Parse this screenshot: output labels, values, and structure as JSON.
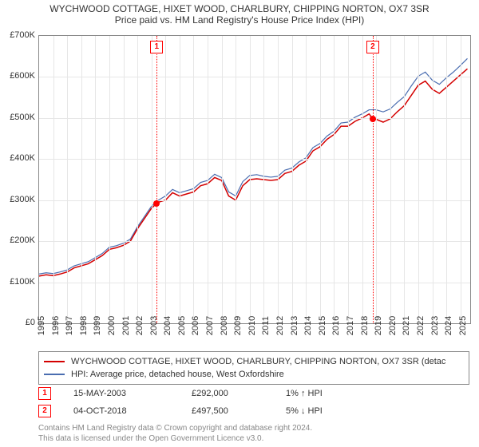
{
  "title": {
    "main": "WYCHWOOD COTTAGE, HIXET WOOD, CHARLBURY, CHIPPING NORTON, OX7 3SR",
    "sub": "Price paid vs. HM Land Registry's House Price Index (HPI)",
    "fontsize": 12,
    "color": "#333333"
  },
  "chart": {
    "type": "line",
    "background_color": "#ffffff",
    "border_color": "#888888",
    "grid_color": "#e6e6e6",
    "x": {
      "ticks": [
        "1995",
        "1996",
        "1997",
        "1998",
        "1999",
        "2000",
        "2001",
        "2002",
        "2003",
        "2004",
        "2005",
        "2006",
        "2007",
        "2008",
        "2009",
        "2010",
        "2011",
        "2012",
        "2013",
        "2014",
        "2015",
        "2016",
        "2017",
        "2018",
        "2019",
        "2020",
        "2021",
        "2022",
        "2023",
        "2024",
        "2025"
      ],
      "label_fontsize": 11,
      "label_rotation_deg": -90,
      "range": [
        1995,
        2025.7
      ]
    },
    "y": {
      "min": 0,
      "max": 700000,
      "tick_step": 100000,
      "tick_labels": [
        "£0",
        "£100K",
        "£200K",
        "£300K",
        "£400K",
        "£500K",
        "£600K",
        "£700K"
      ],
      "label_fontsize": 11
    },
    "series": [
      {
        "name": "WYCHWOOD COTTAGE, HIXET WOOD, CHARLBURY, CHIPPING NORTON, OX7 3SR (detac",
        "color": "#d40000",
        "line_width": 1.5,
        "x": [
          1995,
          1995.5,
          1996,
          1996.5,
          1997,
          1997.5,
          1998,
          1998.5,
          1999,
          1999.5,
          2000,
          2000.5,
          2001,
          2001.5,
          2002,
          2002.5,
          2003,
          2003.37,
          2003.5,
          2004,
          2004.5,
          2005,
          2005.5,
          2006,
          2006.5,
          2007,
          2007.5,
          2008,
          2008.5,
          2009,
          2009.5,
          2010,
          2010.5,
          2011,
          2011.5,
          2012,
          2012.5,
          2013,
          2013.5,
          2014,
          2014.5,
          2015,
          2015.5,
          2016,
          2016.5,
          2017,
          2017.5,
          2018,
          2018.5,
          2018.76,
          2019,
          2019.5,
          2020,
          2020.5,
          2021,
          2021.5,
          2022,
          2022.5,
          2023,
          2023.5,
          2024,
          2024.5,
          2025,
          2025.5
        ],
        "y": [
          115000,
          118000,
          116000,
          120000,
          125000,
          135000,
          140000,
          145000,
          155000,
          165000,
          180000,
          184000,
          190000,
          200000,
          230000,
          255000,
          280000,
          292000,
          295000,
          300000,
          318000,
          310000,
          315000,
          320000,
          335000,
          340000,
          355000,
          348000,
          310000,
          300000,
          335000,
          350000,
          352000,
          350000,
          348000,
          350000,
          365000,
          370000,
          385000,
          395000,
          420000,
          430000,
          448000,
          460000,
          480000,
          480000,
          492000,
          500000,
          510000,
          497500,
          497000,
          490000,
          498000,
          515000,
          530000,
          555000,
          580000,
          590000,
          570000,
          560000,
          575000,
          590000,
          605000,
          620000
        ]
      },
      {
        "name": "HPI: Average price, detached house, West Oxfordshire",
        "color": "#4a6db0",
        "line_width": 1.2,
        "x": [
          1995,
          1995.5,
          1996,
          1996.5,
          1997,
          1997.5,
          1998,
          1998.5,
          1999,
          1999.5,
          2000,
          2000.5,
          2001,
          2001.5,
          2002,
          2002.5,
          2003,
          2003.5,
          2004,
          2004.5,
          2005,
          2005.5,
          2006,
          2006.5,
          2007,
          2007.5,
          2008,
          2008.5,
          2009,
          2009.5,
          2010,
          2010.5,
          2011,
          2011.5,
          2012,
          2012.5,
          2013,
          2013.5,
          2014,
          2014.5,
          2015,
          2015.5,
          2016,
          2016.5,
          2017,
          2017.5,
          2018,
          2018.5,
          2019,
          2019.5,
          2020,
          2020.5,
          2021,
          2021.5,
          2022,
          2022.5,
          2023,
          2023.5,
          2024,
          2024.5,
          2025,
          2025.5
        ],
        "y": [
          120000,
          123000,
          121000,
          125000,
          130000,
          140000,
          145000,
          150000,
          160000,
          170000,
          185000,
          189000,
          195000,
          205000,
          235000,
          260000,
          285000,
          300000,
          310000,
          326000,
          318000,
          323000,
          328000,
          343000,
          348000,
          363000,
          355000,
          320000,
          310000,
          345000,
          360000,
          362000,
          358000,
          356000,
          358000,
          373000,
          378000,
          393000,
          403000,
          428000,
          438000,
          456000,
          468000,
          488000,
          490000,
          502000,
          510000,
          520000,
          520000,
          515000,
          522000,
          538000,
          552000,
          578000,
          602000,
          612000,
          592000,
          582000,
          598000,
          612000,
          628000,
          645000
        ]
      }
    ],
    "events": [
      {
        "id": "1",
        "date_label": "15-MAY-2003",
        "x": 2003.37,
        "price": 292000,
        "price_label": "£292,000",
        "hpi_rel": "1% ↑ HPI"
      },
      {
        "id": "2",
        "date_label": "04-OCT-2018",
        "x": 2018.76,
        "price": 497500,
        "price_label": "£497,500",
        "hpi_rel": "5% ↓ HPI"
      }
    ],
    "event_style": {
      "line_color": "#ff0000",
      "line_style": "dotted",
      "marker_border": "#ff0000",
      "marker_bg": "#ffffff",
      "dot_color": "#ff0000",
      "dot_radius": 4
    }
  },
  "legend": {
    "border_color": "#888888",
    "fontsize": 11
  },
  "footer": {
    "line1": "Contains HM Land Registry data © Crown copyright and database right 2024.",
    "line2": "This data is licensed under the Open Government Licence v3.0.",
    "color": "#888888",
    "fontsize": 10
  }
}
